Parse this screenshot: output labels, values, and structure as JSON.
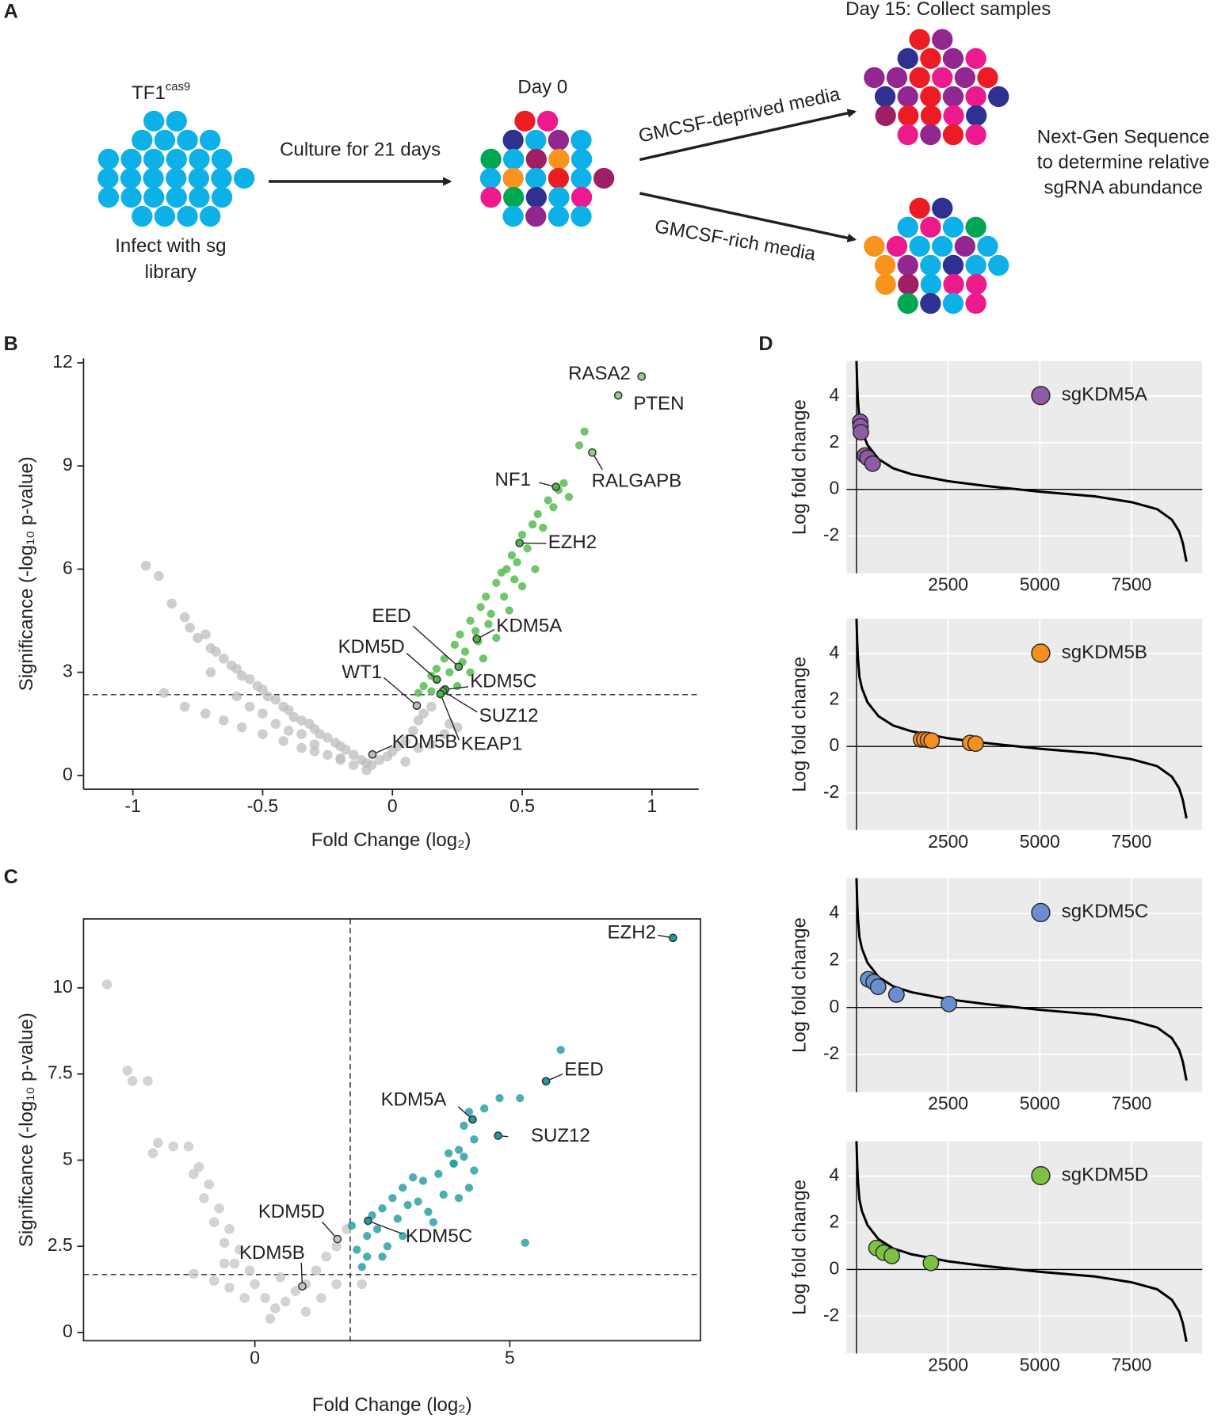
{
  "diagram": {
    "panel": "A",
    "start_label": [
      "TF1",
      "cas9"
    ],
    "infect_label": [
      "Infect with sg",
      "library"
    ],
    "culture_label": "Culture for 21 days",
    "day0_label": "Day 0",
    "deprived_label": "GMCSF-deprived media",
    "rich_label": "GMCSF-rich media",
    "day15_label": "Day 15: Collect samples",
    "sequence_label": [
      "Next-Gen Sequence",
      "to determine relative",
      "sgRNA abundance"
    ]
  },
  "chart_data": [
    {
      "type": "scatter",
      "panel": "B",
      "x_label": "Fold Change (log₂)",
      "y_label": "Significance (-log₁₀ p-value)",
      "xlim": [
        -1.19,
        1.18
      ],
      "ylim": [
        -0.4,
        12.13
      ],
      "xticks": [
        -1,
        -0.5,
        0,
        0.5,
        1
      ],
      "yticks": [
        0,
        3,
        6,
        9,
        12
      ],
      "hline": 2.35,
      "line_style": "dashed",
      "series": [
        {
          "color": "#bdbdbd",
          "x": [
            -0.95,
            -0.9,
            -0.85,
            -0.8,
            -0.78,
            -0.75,
            -0.72,
            -0.7,
            -0.68,
            -0.65,
            -0.62,
            -0.6,
            -0.58,
            -0.55,
            -0.52,
            -0.5,
            -0.48,
            -0.45,
            -0.42,
            -0.4,
            -0.38,
            -0.35,
            -0.32,
            -0.3,
            -0.28,
            -0.25,
            -0.22,
            -0.2,
            -0.18,
            -0.15,
            -0.12,
            -0.1,
            -0.08,
            -0.05,
            -0.02,
            0,
            0.02,
            0.05,
            0.08,
            0.1,
            0.12,
            0.15,
            0.2,
            0.25,
            -0.88,
            -0.8,
            -0.72,
            -0.65,
            -0.58,
            -0.5,
            -0.42,
            -0.35,
            -0.3,
            -0.25,
            -0.2,
            -0.15,
            -0.6,
            -0.5,
            -0.45,
            -0.4,
            -0.3,
            -0.2,
            -0.1,
            0.05,
            0.1,
            -0.7,
            -0.55,
            -0.35,
            0.15,
            0.22
          ],
          "values": [
            6.1,
            5.8,
            5.0,
            4.6,
            4.3,
            4.0,
            4.1,
            3.7,
            3.6,
            3.4,
            3.2,
            3.1,
            2.9,
            2.8,
            2.6,
            2.5,
            2.3,
            2.2,
            2.0,
            1.9,
            1.7,
            1.6,
            1.5,
            1.35,
            1.2,
            1.1,
            0.95,
            0.85,
            0.75,
            0.6,
            0.45,
            0.35,
            0.3,
            0.45,
            0.55,
            0.7,
            0.85,
            1.0,
            1.3,
            1.6,
            1.8,
            2.0,
            1.2,
            1.4,
            2.4,
            2.0,
            1.8,
            1.6,
            1.4,
            1.2,
            1.0,
            0.8,
            0.7,
            0.6,
            0.45,
            0.3,
            2.3,
            1.8,
            1.5,
            1.3,
            0.9,
            0.5,
            0.15,
            0.4,
            0.8,
            3.0,
            2.0,
            1.2,
            0.9,
            1.5
          ]
        },
        {
          "color": "#4db848",
          "x": [
            0.1,
            0.12,
            0.15,
            0.17,
            0.2,
            0.22,
            0.24,
            0.26,
            0.28,
            0.3,
            0.32,
            0.34,
            0.36,
            0.38,
            0.4,
            0.42,
            0.44,
            0.46,
            0.48,
            0.5,
            0.52,
            0.54,
            0.56,
            0.58,
            0.6,
            0.62,
            0.64,
            0.66,
            0.68,
            0.72,
            0.74,
            0.25,
            0.3,
            0.35,
            0.2,
            0.4,
            0.45,
            0.5,
            0.55,
            0.15,
            0.27,
            0.33,
            0.43,
            0.47,
            0.37
          ],
          "values": [
            2.4,
            2.6,
            2.9,
            3.1,
            3.4,
            3.0,
            3.8,
            4.1,
            3.6,
            4.5,
            4.2,
            4.9,
            5.2,
            4.7,
            5.6,
            5.9,
            6.0,
            6.4,
            6.2,
            7.0,
            6.6,
            7.3,
            7.6,
            7.2,
            8.0,
            7.8,
            8.3,
            8.5,
            8.1,
            9.6,
            10.0,
            2.6,
            3.0,
            3.4,
            2.5,
            4.0,
            4.8,
            5.5,
            6.0,
            2.45,
            3.3,
            3.9,
            5.2,
            5.7,
            4.4
          ]
        }
      ],
      "annotations": [
        {
          "text": "RASA2",
          "x": 0.96,
          "y": 11.6,
          "color": "#8fd18a"
        },
        {
          "text": "PTEN",
          "x": 0.87,
          "y": 11.05,
          "color": "#8fd18a"
        },
        {
          "text": "RALGAPB",
          "x": 0.77,
          "y": 9.39,
          "color": "#8fd18a"
        },
        {
          "text": "NF1",
          "x": 0.63,
          "y": 8.39,
          "color": "#4db848"
        },
        {
          "text": "EZH2",
          "x": 0.49,
          "y": 6.76,
          "color": "#4db848"
        },
        {
          "text": "KDM5A",
          "x": 0.325,
          "y": 3.97,
          "color": "#4db848"
        },
        {
          "text": "EED",
          "x": 0.255,
          "y": 3.16,
          "color": "#4db848"
        },
        {
          "text": "KDM5D",
          "x": 0.171,
          "y": 2.79,
          "color": "#4db848"
        },
        {
          "text": "KDM5C",
          "x": 0.203,
          "y": 2.5,
          "color": "#4db848"
        },
        {
          "text": "SUZ12",
          "x": 0.195,
          "y": 2.45,
          "color": "#4db848"
        },
        {
          "text": "KEAP1",
          "x": 0.185,
          "y": 2.37,
          "color": "#4db848"
        },
        {
          "text": "WT1",
          "x": 0.094,
          "y": 2.03,
          "color": "#bdbdbd"
        },
        {
          "text": "KDM5B",
          "x": -0.077,
          "y": 0.61,
          "color": "#bdbdbd"
        }
      ]
    },
    {
      "type": "scatter",
      "panel": "C",
      "x_label": "Fold Change (log₂)",
      "y_label": "Significance (-log₁₀ p-value)",
      "xlim": [
        -3.36,
        8.74
      ],
      "ylim": [
        -0.24,
        12.0
      ],
      "xticks": [
        0,
        5
      ],
      "yticks": [
        0,
        2.5,
        5,
        7.5,
        10
      ],
      "hline": 1.68,
      "vline": 1.87,
      "line_style": "dashed",
      "frame": true,
      "series": [
        {
          "color": "#c4c4c4",
          "x": [
            -2.9,
            -2.5,
            -2.4,
            -2.1,
            -1.9,
            -1.6,
            -1.3,
            -2.0,
            -1.1,
            -1.2,
            -0.9,
            -1.0,
            -0.7,
            -0.8,
            -0.5,
            -0.6,
            -0.3,
            -0.4,
            -0.1,
            0,
            0.2,
            0.4,
            0.6,
            0.8,
            1.0,
            1.2,
            1.4,
            1.6,
            1.8,
            -0.8,
            -0.5,
            -0.2,
            1.3,
            1.6,
            2.1,
            -1.2,
            0.3,
            1.0,
            -0.6,
            0.5
          ],
          "values": [
            10.1,
            7.6,
            7.3,
            7.3,
            5.5,
            5.4,
            5.4,
            5.2,
            4.8,
            4.6,
            4.3,
            3.9,
            3.6,
            3.2,
            3.0,
            2.6,
            2.4,
            2.0,
            1.8,
            1.4,
            1.0,
            0.7,
            0.9,
            1.2,
            1.4,
            1.8,
            2.2,
            2.5,
            3.0,
            1.5,
            1.3,
            1.0,
            1.0,
            1.4,
            1.4,
            1.7,
            0.4,
            0.6,
            2.0,
            1.6
          ]
        },
        {
          "color": "#1f9a9f",
          "x": [
            1.9,
            2.0,
            2.1,
            2.2,
            2.3,
            2.4,
            2.5,
            2.6,
            2.7,
            2.8,
            2.9,
            3.0,
            3.1,
            3.2,
            3.3,
            3.4,
            3.6,
            3.7,
            3.9,
            4.0,
            4.1,
            4.2,
            4.3,
            3.8,
            3.9,
            4.0,
            4.2,
            4.5,
            4.8,
            5.2,
            4.1,
            4.3,
            6.0,
            5.3,
            3.5,
            2.9,
            2.2,
            2.5
          ],
          "values": [
            3.1,
            2.4,
            1.9,
            2.8,
            3.4,
            3.0,
            3.6,
            2.5,
            3.9,
            3.3,
            4.2,
            3.7,
            4.5,
            3.8,
            4.4,
            3.5,
            4.6,
            4.0,
            4.9,
            3.9,
            5.1,
            4.2,
            4.7,
            5.2,
            4.9,
            5.3,
            6.4,
            6.5,
            6.8,
            6.8,
            6.0,
            5.6,
            8.2,
            2.6,
            3.2,
            2.8,
            2.2,
            2.2
          ]
        }
      ],
      "annotations": [
        {
          "text": "EZH2",
          "x": 8.2,
          "y": 11.45,
          "color": "#1f9a9f"
        },
        {
          "text": "EED",
          "x": 5.71,
          "y": 7.29,
          "color": "#1f9a9f"
        },
        {
          "text": "KDM5A",
          "x": 4.27,
          "y": 6.18,
          "color": "#1f9a9f"
        },
        {
          "text": "SUZ12",
          "x": 4.77,
          "y": 5.71,
          "color": "#1f9a9f"
        },
        {
          "text": "KDM5C",
          "x": 2.22,
          "y": 3.24,
          "color": "#1f9a9f"
        },
        {
          "text": "KDM5D",
          "x": 1.62,
          "y": 2.71,
          "color": "#c4c4c4"
        },
        {
          "text": "KDM5B",
          "x": 0.93,
          "y": 1.34,
          "color": "#c4c4c4"
        }
      ]
    },
    {
      "type": "line",
      "panel": "D",
      "y_label": "Log fold change",
      "xlim": [
        -270,
        9430
      ],
      "ylim": [
        -3.6,
        5.5
      ],
      "xticks": [
        2500,
        5000,
        7500
      ],
      "yticks": [
        -2,
        0,
        2,
        4
      ],
      "grid": true,
      "background": "#ebebeb",
      "hline": 0,
      "vline": 0,
      "line_style": "solid",
      "legend": "top-right",
      "series": [
        {
          "color": "#000000",
          "x": [
            0,
            20,
            40,
            80,
            150,
            300,
            600,
            1000,
            1500,
            2500,
            3500,
            5000,
            6500,
            7500,
            8200,
            8600,
            8800,
            8900,
            8950,
            9000
          ],
          "values": [
            5.5,
            4.5,
            3.8,
            3.0,
            2.5,
            1.9,
            1.3,
            0.9,
            0.65,
            0.35,
            0.15,
            -0.1,
            -0.3,
            -0.55,
            -0.85,
            -1.3,
            -1.8,
            -2.3,
            -2.7,
            -3.1
          ]
        },
        {
          "name": "sgKDM5A",
          "color": "#8e5ba6",
          "x": [
            100,
            110,
            120,
            230,
            300,
            440
          ],
          "values": [
            2.9,
            2.7,
            2.45,
            1.45,
            1.35,
            1.1
          ]
        }
      ]
    },
    {
      "type": "line",
      "xlim": [
        -270,
        9430
      ],
      "ylim": [
        -3.6,
        5.5
      ],
      "y_label": "Log fold change",
      "xticks": [
        2500,
        5000,
        7500
      ],
      "yticks": [
        -2,
        0,
        2,
        4
      ],
      "grid": true,
      "background": "#ebebeb",
      "hline": 0,
      "vline": 0,
      "line_style": "solid",
      "legend": "top-right",
      "series": [
        {
          "color": "#000000",
          "x": [
            0,
            20,
            40,
            80,
            150,
            300,
            600,
            1000,
            1500,
            2500,
            3500,
            5000,
            6500,
            7500,
            8200,
            8600,
            8800,
            8900,
            8950,
            9000
          ],
          "values": [
            5.5,
            4.5,
            3.8,
            3.0,
            2.5,
            1.9,
            1.3,
            0.9,
            0.65,
            0.35,
            0.15,
            -0.1,
            -0.3,
            -0.55,
            -0.85,
            -1.3,
            -1.8,
            -2.3,
            -2.7,
            -3.1
          ]
        },
        {
          "name": "sgKDM5B",
          "color": "#f39020",
          "x": [
            1760,
            1850,
            1950,
            2050,
            3100,
            3250
          ],
          "values": [
            0.3,
            0.3,
            0.28,
            0.25,
            0.15,
            0.12
          ]
        }
      ]
    },
    {
      "type": "line",
      "xlim": [
        -270,
        9430
      ],
      "ylim": [
        -3.6,
        5.5
      ],
      "y_label": "Log fold change",
      "xticks": [
        2500,
        5000,
        7500
      ],
      "yticks": [
        -2,
        0,
        2,
        4
      ],
      "grid": true,
      "background": "#ebebeb",
      "hline": 0,
      "vline": 0,
      "line_style": "solid",
      "legend": "top-right",
      "series": [
        {
          "color": "#000000",
          "x": [
            0,
            20,
            40,
            80,
            150,
            300,
            600,
            1000,
            1500,
            2500,
            3500,
            5000,
            6500,
            7500,
            8200,
            8600,
            8800,
            8900,
            8950,
            9000
          ],
          "values": [
            5.5,
            4.5,
            3.8,
            3.0,
            2.5,
            1.9,
            1.3,
            0.9,
            0.65,
            0.35,
            0.15,
            -0.1,
            -0.3,
            -0.55,
            -0.85,
            -1.3,
            -1.8,
            -2.3,
            -2.7,
            -3.1
          ]
        },
        {
          "name": "sgKDM5C",
          "color": "#6a8fd0",
          "x": [
            320,
            470,
            590,
            1090,
            2520
          ],
          "values": [
            1.2,
            1.08,
            0.88,
            0.55,
            0.15
          ]
        }
      ]
    },
    {
      "type": "line",
      "xlim": [
        -270,
        9430
      ],
      "ylim": [
        -3.6,
        5.5
      ],
      "y_label": "Log fold change",
      "xticks": [
        2500,
        5000,
        7500
      ],
      "yticks": [
        -2,
        0,
        2,
        4
      ],
      "grid": true,
      "background": "#ebebeb",
      "hline": 0,
      "vline": 0,
      "line_style": "solid",
      "legend": "top-right",
      "series": [
        {
          "color": "#000000",
          "x": [
            0,
            20,
            40,
            80,
            150,
            300,
            600,
            1000,
            1500,
            2500,
            3500,
            5000,
            6500,
            7500,
            8200,
            8600,
            8800,
            8900,
            8950,
            9000
          ],
          "values": [
            5.5,
            4.5,
            3.8,
            3.0,
            2.5,
            1.9,
            1.3,
            0.9,
            0.65,
            0.35,
            0.15,
            -0.1,
            -0.3,
            -0.55,
            -0.85,
            -1.3,
            -1.8,
            -2.3,
            -2.7,
            -3.1
          ]
        },
        {
          "name": "sgKDM5D",
          "color": "#7cc242",
          "x": [
            545,
            740,
            965,
            2030
          ],
          "values": [
            0.92,
            0.72,
            0.58,
            0.28
          ]
        }
      ]
    }
  ]
}
